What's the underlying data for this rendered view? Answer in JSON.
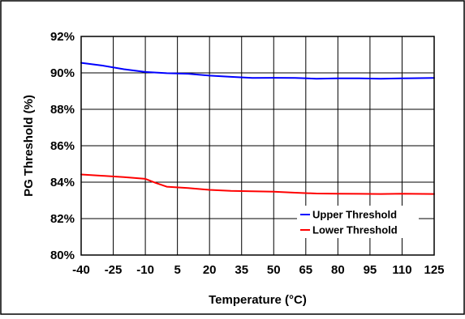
{
  "chart_data": {
    "type": "line",
    "xlabel": "Temperature (°C)",
    "ylabel": "PG Threshold (%)",
    "x_ticks": [
      "-40",
      "-25",
      "-10",
      "5",
      "20",
      "35",
      "50",
      "65",
      "80",
      "95",
      "110",
      "125"
    ],
    "y_ticks": [
      "80%",
      "82%",
      "84%",
      "86%",
      "88%",
      "90%",
      "92%"
    ],
    "xlim": [
      -40,
      125
    ],
    "ylim": [
      80,
      92
    ],
    "grid": true,
    "legend_position": "bottom-right",
    "series": [
      {
        "name": "Upper Threshold",
        "color": "#0000ff",
        "x": [
          -40,
          -30,
          -20,
          -10,
          0,
          10,
          20,
          30,
          40,
          50,
          60,
          70,
          80,
          90,
          100,
          110,
          125
        ],
        "y": [
          90.55,
          90.4,
          90.2,
          90.05,
          89.98,
          89.95,
          89.85,
          89.78,
          89.72,
          89.73,
          89.72,
          89.68,
          89.7,
          89.7,
          89.68,
          89.7,
          89.72
        ]
      },
      {
        "name": "Lower Threshold",
        "color": "#ff0000",
        "x": [
          -40,
          -30,
          -20,
          -10,
          -5,
          0,
          10,
          20,
          30,
          40,
          50,
          60,
          70,
          80,
          90,
          100,
          110,
          125
        ],
        "y": [
          84.42,
          84.35,
          84.28,
          84.18,
          83.95,
          83.75,
          83.68,
          83.58,
          83.52,
          83.5,
          83.48,
          83.42,
          83.38,
          83.37,
          83.36,
          83.35,
          83.37,
          83.35
        ]
      }
    ]
  }
}
